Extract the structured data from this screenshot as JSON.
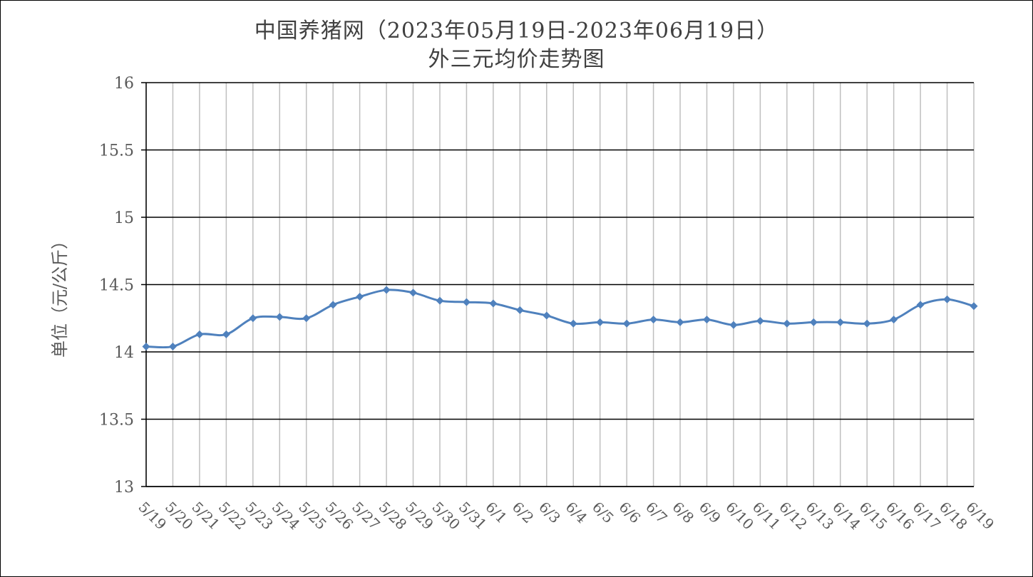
{
  "chart_data": {
    "type": "line",
    "title": "中国养猪网（2023年05月19日-2023年06月19日）",
    "subtitle": "外三元均价走势图",
    "ylabel": "单位（元/公斤）",
    "xlabel": "",
    "ylim": [
      13,
      16
    ],
    "yticks": [
      "13",
      "13.5",
      "14",
      "14.5",
      "15",
      "15.5",
      "16"
    ],
    "ytick_values": [
      13,
      13.5,
      14,
      14.5,
      15,
      15.5,
      16
    ],
    "categories": [
      "5/19",
      "5/20",
      "5/21",
      "5/22",
      "5/23",
      "5/24",
      "5/25",
      "5/26",
      "5/27",
      "5/28",
      "5/29",
      "5/30",
      "5/31",
      "6/1",
      "6/2",
      "6/3",
      "6/4",
      "6/5",
      "6/6",
      "6/7",
      "6/8",
      "6/9",
      "6/10",
      "6/11",
      "6/12",
      "6/13",
      "6/14",
      "6/15",
      "6/16",
      "6/17",
      "6/18",
      "6/19"
    ],
    "series": [
      {
        "values": [
          14.04,
          14.04,
          14.13,
          14.13,
          14.25,
          14.26,
          14.25,
          14.35,
          14.41,
          14.46,
          14.44,
          14.38,
          14.37,
          14.36,
          14.31,
          14.27,
          14.21,
          14.22,
          14.21,
          14.24,
          14.22,
          14.24,
          14.2,
          14.23,
          14.21,
          14.22,
          14.22,
          14.21,
          14.24,
          14.35,
          14.39,
          14.34
        ]
      }
    ],
    "grid": true,
    "legend": "none",
    "colors": {
      "line": "#4f81bd",
      "hgrid": "#000000",
      "vgrid": "#bfbfbf",
      "text": "#595959"
    }
  }
}
